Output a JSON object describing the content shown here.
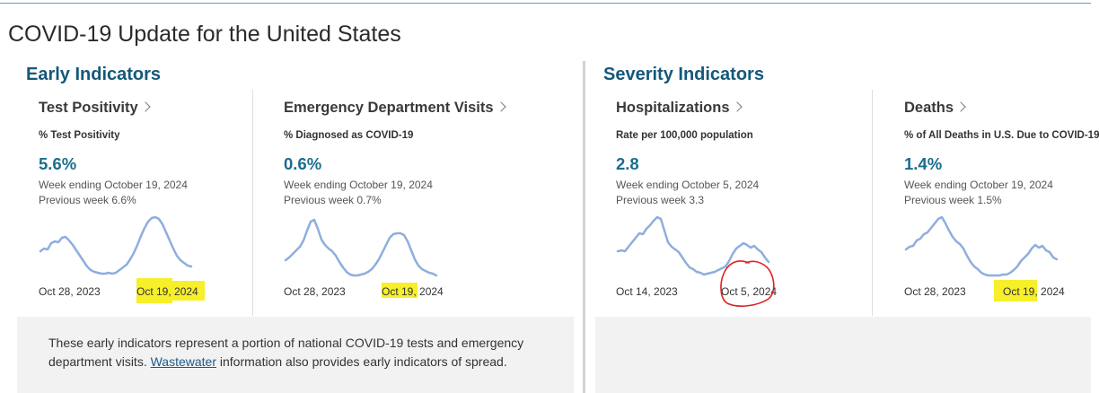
{
  "page": {
    "title": "COVID-19 Update for the United States"
  },
  "groups": {
    "early": {
      "title": "Early Indicators"
    },
    "severity": {
      "title": "Severity Indicators"
    }
  },
  "cards": [
    {
      "title": "Test Positivity",
      "metric_label": "% Test Positivity",
      "value": "5.6%",
      "week": "Week ending October 19, 2024",
      "previous": "Previous week 6.6%",
      "date_start": "Oct 28, 2023",
      "date_end": "Oct 19, 2024"
    },
    {
      "title": "Emergency Department Visits",
      "metric_label": "% Diagnosed as COVID-19",
      "value": "0.6%",
      "week": "Week ending October 19, 2024",
      "previous": "Previous week 0.7%",
      "date_start": "Oct 28, 2023",
      "date_end": "Oct 19, 2024"
    },
    {
      "title": "Hospitalizations",
      "metric_label": "Rate per 100,000 population",
      "value": "2.8",
      "week": "Week ending October 5, 2024",
      "previous": "Previous week 3.3",
      "date_start": "Oct 14, 2023",
      "date_end": "Oct 5, 2024"
    },
    {
      "title": "Deaths",
      "metric_label": "% of All Deaths in U.S. Due to COVID-19",
      "value": "1.4%",
      "week": "Week ending October 19, 2024",
      "previous": "Previous week 1.5%",
      "date_start": "Oct 28, 2023",
      "date_end": "Oct 19, 2024"
    }
  ],
  "note": {
    "before": "These early indicators represent a portion of national COVID-19 tests and emergency department visits. ",
    "link": "Wastewater",
    "after": " information also provides early indicators of spread."
  },
  "colors": {
    "accent": "#14587a",
    "value": "#1a6d8e",
    "sparkline": "#8faedd",
    "highlight": "#f5ee1e",
    "annotation": "#e0201f"
  },
  "icons": {
    "card_link": "chevron-right-icon"
  }
}
